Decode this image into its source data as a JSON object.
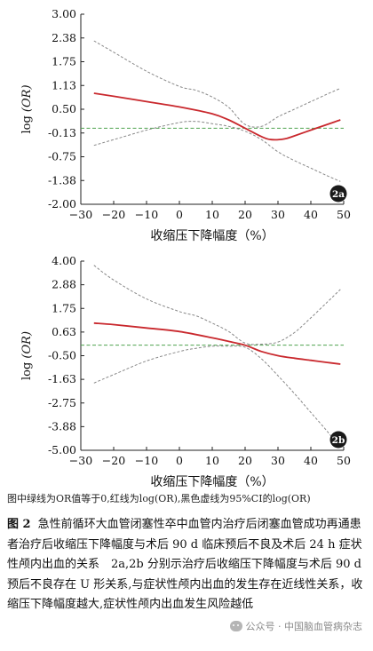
{
  "chart_data": [
    {
      "type": "line",
      "panel_label": "2a",
      "ylabel_text": "log",
      "ylabel_var": "(OR)",
      "xlabel": "收缩压下降幅度（%）",
      "xlim": [
        -30,
        50
      ],
      "ylim": [
        -2.0,
        3.0
      ],
      "x_ticks": [
        -30,
        -20,
        -10,
        0,
        10,
        20,
        30,
        40,
        50
      ],
      "y_ticks": [
        "3.00",
        "2.38",
        "1.75",
        "1.13",
        "0.50",
        "-0.13",
        "-0.75",
        "-1.38",
        "-2.00"
      ],
      "reference_y": 0,
      "series": [
        {
          "role": "log(OR)",
          "color": "#c9282d",
          "x": [
            -26,
            -20,
            -10,
            0,
            10,
            15,
            20,
            25,
            28,
            32,
            35,
            40,
            45,
            49
          ],
          "y": [
            0.92,
            0.84,
            0.7,
            0.56,
            0.38,
            0.22,
            0.0,
            -0.22,
            -0.3,
            -0.28,
            -0.2,
            -0.05,
            0.1,
            0.22
          ]
        },
        {
          "role": "95% CI upper",
          "color": "#888888",
          "x": [
            -26,
            -20,
            -10,
            0,
            5,
            10,
            15,
            20,
            25,
            30,
            35,
            40,
            45,
            49
          ],
          "y": [
            2.3,
            2.0,
            1.5,
            1.1,
            1.0,
            0.82,
            0.55,
            0.1,
            0.05,
            0.3,
            0.5,
            0.7,
            0.9,
            1.05
          ]
        },
        {
          "role": "95% CI lower",
          "color": "#888888",
          "x": [
            -26,
            -20,
            -10,
            0,
            5,
            10,
            15,
            20,
            25,
            30,
            35,
            40,
            45,
            49
          ],
          "y": [
            -0.45,
            -0.3,
            -0.05,
            0.15,
            0.18,
            0.12,
            0.05,
            -0.08,
            -0.3,
            -0.62,
            -0.85,
            -1.05,
            -1.25,
            -1.4
          ]
        }
      ]
    },
    {
      "type": "line",
      "panel_label": "2b",
      "ylabel_text": "log",
      "ylabel_var": "(OR)",
      "xlabel": "收缩压下降幅度（%）",
      "xlim": [
        -30,
        50
      ],
      "ylim": [
        -5.0,
        4.0
      ],
      "x_ticks": [
        -30,
        -20,
        -10,
        0,
        10,
        20,
        30,
        40,
        50
      ],
      "y_ticks": [
        "4.00",
        "2.88",
        "1.75",
        "0.63",
        "-0.50",
        "-1.63",
        "-2.75",
        "-3.88",
        "-5.00"
      ],
      "reference_y": 0,
      "series": [
        {
          "role": "log(OR)",
          "color": "#c9282d",
          "x": [
            -26,
            -20,
            -10,
            0,
            10,
            15,
            20,
            25,
            30,
            35,
            40,
            45,
            49
          ],
          "y": [
            1.05,
            0.98,
            0.82,
            0.65,
            0.35,
            0.18,
            0.0,
            -0.3,
            -0.5,
            -0.62,
            -0.72,
            -0.82,
            -0.9
          ]
        },
        {
          "role": "95% CI upper",
          "color": "#888888",
          "x": [
            -26,
            -20,
            -10,
            0,
            5,
            10,
            15,
            20,
            25,
            30,
            35,
            40,
            45,
            49
          ],
          "y": [
            3.8,
            3.1,
            2.2,
            1.6,
            1.4,
            1.05,
            0.65,
            0.1,
            0.05,
            0.15,
            0.6,
            1.3,
            2.05,
            2.65
          ]
        },
        {
          "role": "95% CI lower",
          "color": "#888888",
          "x": [
            -26,
            -20,
            -10,
            0,
            5,
            10,
            15,
            20,
            25,
            30,
            35,
            40,
            45,
            49
          ],
          "y": [
            -1.8,
            -1.4,
            -0.75,
            -0.3,
            -0.15,
            -0.05,
            -0.05,
            -0.1,
            -0.65,
            -1.45,
            -2.3,
            -3.2,
            -4.1,
            -4.9
          ]
        }
      ]
    }
  ],
  "note": "图中绿线为OR值等于0,红线为log(OR),黑色虚线为95%CI的log(OR)",
  "caption": {
    "fig_no": "图 2",
    "text": "急性前循环大血管闭塞性卒中血管内治疗后闭塞血管成功再通患者治疗后收缩压下降幅度与术后 90 d 临床预后不良及术后 24 h 症状性颅内出血的关系　2a,2b 分别示治疗后收缩压下降幅度与术后 90 d 预后不良存在 U 形关系,与症状性颅内出血的发生存在近线性关系，收缩压下降幅度越大,症状性颅内出血发生风险越低"
  },
  "watermark": "公众号 · 中国脑血管病杂志"
}
